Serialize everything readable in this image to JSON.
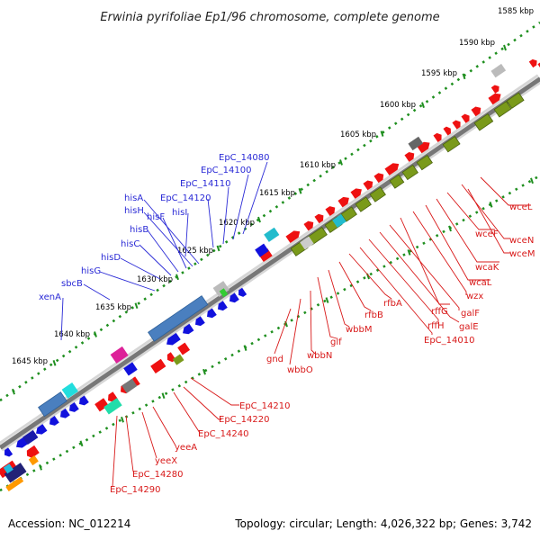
{
  "title": "Erwinia pyrifoliae Ep1/96 chromosome, complete genome",
  "footer": {
    "accession": "Accession: NC_012214",
    "summary": "Topology: circular; Length: 4,026,322 bp; Genes: 3,742"
  },
  "colors": {
    "backbone": "#888888",
    "scale_dots": "#1f8f1f",
    "forward_gene": "#ee1111",
    "reverse_gene": "#1111dd",
    "operon_olive": "#7a9a1a",
    "operon_blue": "#4a7fbf",
    "label_blue": "#2a2ad6",
    "label_red": "#d81818"
  },
  "scale_labels": [
    "1585 kbp",
    "1590 kbp",
    "1595 kbp",
    "1600 kbp",
    "1605 kbp",
    "1610 kbp",
    "1615 kbp",
    "1620 kbp",
    "1625 kbp",
    "1630 kbp",
    "1635 kbp",
    "1640 kbp",
    "1645 kbp"
  ],
  "top_labels": [
    "EpC_14080",
    "EpC_14100",
    "EpC_14110",
    "EpC_14120",
    "hisA",
    "hisH",
    "hisF",
    "hisI",
    "hisB",
    "hisC",
    "hisD",
    "hisG",
    "sbcB",
    "xenA"
  ],
  "bottom_labels_right": [
    "wceL",
    "wceF",
    "wceN",
    "wceM",
    "wcaK",
    "wcaL",
    "wzx",
    "rffG",
    "galF",
    "galE",
    "rffH",
    "EpC_14010",
    "rfbA",
    "rfbB",
    "wbbM",
    "glf",
    "wbbN",
    "wbbO",
    "gnd"
  ],
  "bottom_labels_left": [
    "EpC_14210",
    "EpC_14220",
    "EpC_14240",
    "yeeA",
    "yeeX",
    "EpC_14280",
    "EpC_14290"
  ]
}
